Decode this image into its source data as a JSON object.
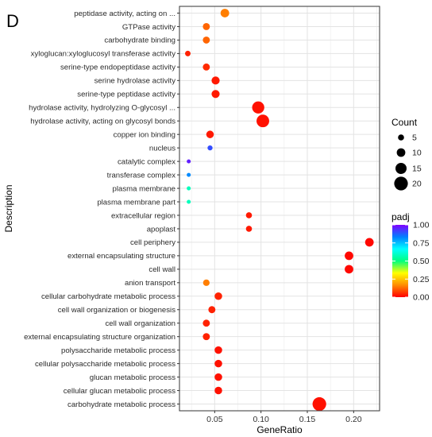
{
  "panel_label": "D",
  "chart_data": {
    "type": "scatter",
    "xlabel": "GeneRatio",
    "ylabel": "Description",
    "xlim": [
      0.012,
      0.228
    ],
    "xticks": [
      0.05,
      0.1,
      0.15,
      0.2
    ],
    "xtick_labels": [
      "0.05",
      "0.10",
      "0.15",
      "0.20"
    ],
    "grid": true,
    "legend_position": "right",
    "size_legend": {
      "title": "Count",
      "values": [
        5,
        10,
        15,
        20
      ],
      "labels": [
        "5",
        "10",
        "15",
        "20"
      ]
    },
    "color_legend": {
      "title": "padj",
      "range": [
        0,
        1
      ],
      "ticks": [
        0,
        0.25,
        0.5,
        0.75,
        1
      ],
      "tick_labels": [
        "0.00",
        "0.25",
        "0.50",
        "0.75",
        "1.00"
      ],
      "gradient": [
        "#ff0000",
        "#ff8c00",
        "#ffff00",
        "#00ff7f",
        "#00ffff",
        "#0080ff",
        "#8000ff"
      ]
    },
    "points": [
      {
        "label": "peptidase activity, acting on ...",
        "x": 0.061,
        "count": 10,
        "padj": 0.15
      },
      {
        "label": "GTPase activity",
        "x": 0.041,
        "count": 7,
        "padj": 0.12
      },
      {
        "label": "carbohydrate binding",
        "x": 0.041,
        "count": 7,
        "padj": 0.12
      },
      {
        "label": "xyloglucan:xyloglucosyl transferase activity",
        "x": 0.021,
        "count": 4,
        "padj": 0.04
      },
      {
        "label": "serine-type endopeptidase activity",
        "x": 0.041,
        "count": 7,
        "padj": 0.05
      },
      {
        "label": "serine hydrolase activity",
        "x": 0.051,
        "count": 9,
        "padj": 0.03
      },
      {
        "label": "serine-type peptidase activity",
        "x": 0.051,
        "count": 9,
        "padj": 0.03
      },
      {
        "label": "hydrolase activity, hydrolyzing O-glycosyl ...",
        "x": 0.097,
        "count": 17,
        "padj": 0.02
      },
      {
        "label": "hydrolase activity, acting on glycosyl bonds",
        "x": 0.102,
        "count": 18,
        "padj": 0.02
      },
      {
        "label": "copper ion binding",
        "x": 0.045,
        "count": 8,
        "padj": 0.03
      },
      {
        "label": "nucleus",
        "x": 0.045,
        "count": 3,
        "padj": 0.9
      },
      {
        "label": "catalytic complex",
        "x": 0.022,
        "count": 1,
        "padj": 0.96
      },
      {
        "label": "transferase complex",
        "x": 0.022,
        "count": 1,
        "padj": 0.82
      },
      {
        "label": "plasma membrane",
        "x": 0.022,
        "count": 1,
        "padj": 0.58
      },
      {
        "label": "plasma membrane part",
        "x": 0.022,
        "count": 1,
        "padj": 0.58
      },
      {
        "label": "extracellular region",
        "x": 0.087,
        "count": 5,
        "padj": 0.03
      },
      {
        "label": "apoplast",
        "x": 0.087,
        "count": 5,
        "padj": 0.03
      },
      {
        "label": "cell periphery",
        "x": 0.217,
        "count": 10,
        "padj": 0.01
      },
      {
        "label": "external encapsulating structure",
        "x": 0.195,
        "count": 10,
        "padj": 0.01
      },
      {
        "label": "cell wall",
        "x": 0.195,
        "count": 10,
        "padj": 0.01
      },
      {
        "label": "anion transport",
        "x": 0.041,
        "count": 6,
        "padj": 0.15
      },
      {
        "label": "cellular carbohydrate metabolic process",
        "x": 0.054,
        "count": 8,
        "padj": 0.04
      },
      {
        "label": "cell wall organization or biogenesis",
        "x": 0.047,
        "count": 7,
        "padj": 0.04
      },
      {
        "label": "cell wall organization",
        "x": 0.041,
        "count": 7,
        "padj": 0.04
      },
      {
        "label": "external encapsulating structure organization",
        "x": 0.041,
        "count": 7,
        "padj": 0.04
      },
      {
        "label": "polysaccharide metabolic process",
        "x": 0.054,
        "count": 8,
        "padj": 0.02
      },
      {
        "label": "cellular polysaccharide metabolic process",
        "x": 0.054,
        "count": 8,
        "padj": 0.02
      },
      {
        "label": "glucan metabolic process",
        "x": 0.054,
        "count": 8,
        "padj": 0.02
      },
      {
        "label": "cellular glucan metabolic process",
        "x": 0.054,
        "count": 8,
        "padj": 0.02
      },
      {
        "label": "carbohydrate metabolic process",
        "x": 0.163,
        "count": 20,
        "padj": 0.02
      }
    ]
  }
}
